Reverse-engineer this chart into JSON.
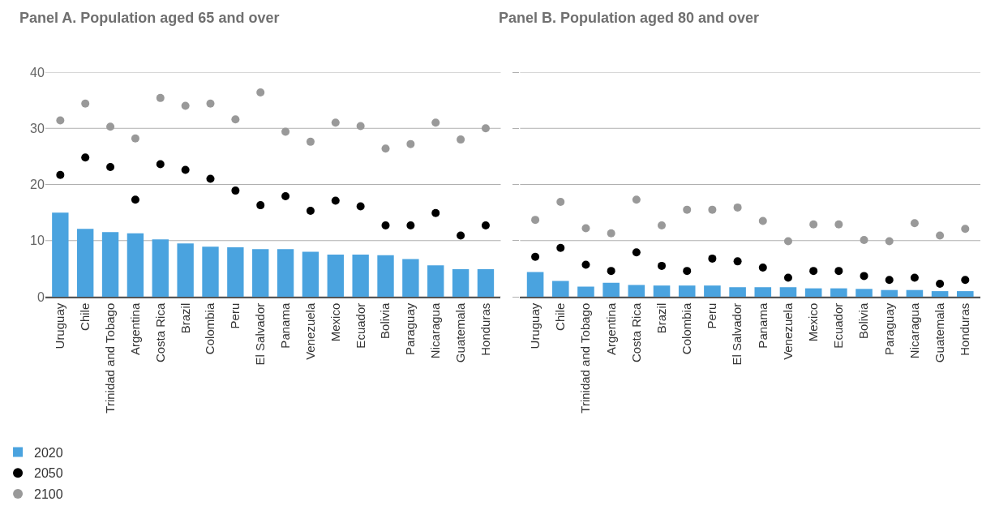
{
  "chart_data": [
    {
      "type": "bar",
      "title": "Panel A. Population aged 65 and over",
      "categories": [
        "Uruguay",
        "Chile",
        "Trinidad and Tobago",
        "Argentina",
        "Costa Rica",
        "Brazil",
        "Colombia",
        "Peru",
        "El Salvador",
        "Panama",
        "Venezuela",
        "Mexico",
        "Ecuador",
        "Bolivia",
        "Paraguay",
        "Nicaragua",
        "Guatemala",
        "Honduras"
      ],
      "series": [
        {
          "name": "2020",
          "color": "#4aa3df",
          "values": [
            15.0,
            12.1,
            11.5,
            11.3,
            10.2,
            9.5,
            8.9,
            8.8,
            8.5,
            8.5,
            8.0,
            7.5,
            7.5,
            7.4,
            6.7,
            5.6,
            4.9,
            4.9
          ]
        },
        {
          "name": "2050",
          "type": "scatter",
          "color": "#000000",
          "values": [
            21.7,
            24.8,
            23.1,
            17.3,
            23.6,
            22.6,
            21.0,
            18.9,
            16.3,
            17.9,
            15.3,
            17.1,
            16.1,
            12.7,
            12.7,
            14.9,
            10.9,
            12.7
          ]
        },
        {
          "name": "2100",
          "type": "scatter",
          "color": "#999999",
          "values": [
            31.4,
            34.4,
            30.3,
            28.2,
            35.4,
            34.0,
            34.4,
            31.6,
            36.4,
            29.4,
            27.6,
            31.0,
            30.4,
            26.4,
            27.2,
            31.0,
            28.0,
            30.0
          ]
        }
      ],
      "ylim": [
        0,
        40
      ],
      "yticks": [
        0,
        10,
        20,
        30,
        40
      ],
      "grid": "y",
      "legend": "bottom left",
      "marker": "circle"
    },
    {
      "type": "bar",
      "title": "Panel B. Population aged 80 and over",
      "categories": [
        "Uruguay",
        "Chile",
        "Trinidad and Tobago",
        "Argentina",
        "Costa Rica",
        "Brazil",
        "Colombia",
        "Peru",
        "El Salvador",
        "Panama",
        "Venezuela",
        "Mexico",
        "Ecuador",
        "Bolivia",
        "Paraguay",
        "Nicaragua",
        "Guatemala",
        "Honduras"
      ],
      "series": [
        {
          "name": "2020",
          "color": "#4aa3df",
          "values": [
            4.4,
            2.8,
            1.8,
            2.5,
            2.1,
            2.0,
            2.0,
            2.0,
            1.7,
            1.7,
            1.7,
            1.5,
            1.5,
            1.4,
            1.2,
            1.2,
            1.0,
            1.0
          ]
        },
        {
          "name": "2050",
          "type": "scatter",
          "color": "#000000",
          "values": [
            7.1,
            8.7,
            5.7,
            4.6,
            7.9,
            5.5,
            4.6,
            6.8,
            6.3,
            5.2,
            3.4,
            4.6,
            4.6,
            3.7,
            3.0,
            3.4,
            2.3,
            3.0
          ]
        },
        {
          "name": "2100",
          "type": "scatter",
          "color": "#999999",
          "values": [
            13.7,
            16.9,
            12.2,
            11.3,
            17.3,
            12.7,
            15.5,
            15.5,
            15.9,
            13.5,
            9.9,
            12.9,
            12.9,
            10.1,
            9.9,
            13.1,
            10.9,
            12.1
          ]
        }
      ],
      "ylim": [
        0,
        40
      ],
      "yticks": [
        0,
        10,
        20,
        30,
        40
      ],
      "grid": "y",
      "tick_labels": "x",
      "marker": "circle"
    }
  ]
}
